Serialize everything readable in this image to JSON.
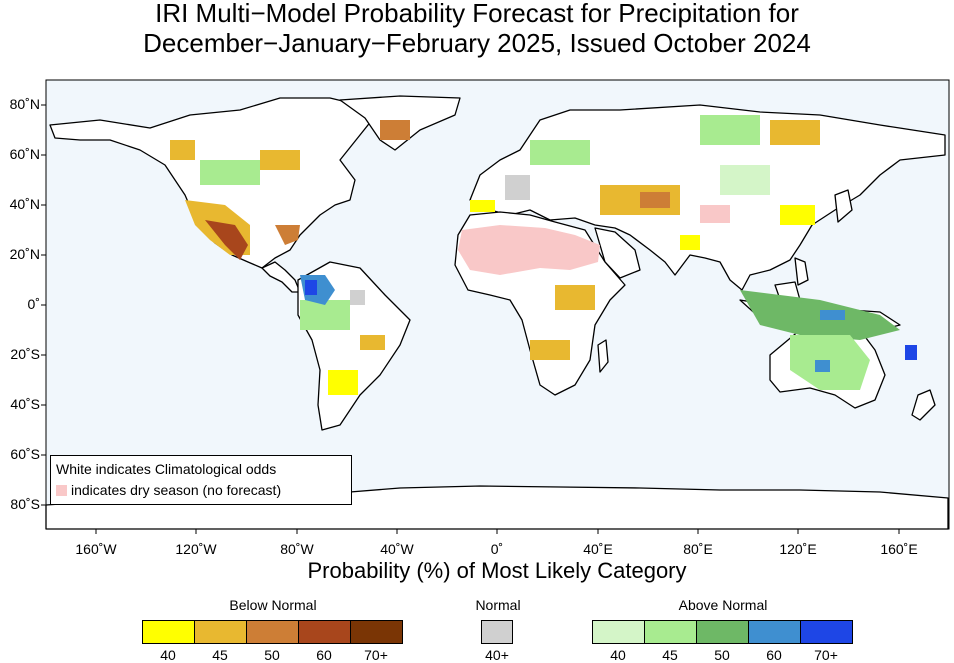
{
  "title": {
    "line1": "IRI Multi−Model Probability Forecast for Precipitation for",
    "line2": "December−January−February 2025, Issued October 2024"
  },
  "axes": {
    "lat_labels": [
      "80˚N",
      "60˚N",
      "40˚N",
      "20˚N",
      "0˚",
      "20˚S",
      "40˚S",
      "60˚S",
      "80˚S"
    ],
    "lon_labels": [
      "160˚W",
      "120˚W",
      "80˚W",
      "40˚W",
      "0˚",
      "40˚E",
      "80˚E",
      "120˚E",
      "160˚E"
    ],
    "xlabel": "Probability (%) of Most Likely Category"
  },
  "legend_box": {
    "line1": "White indicates Climatological odds",
    "line2": "indicates dry season (no forecast)",
    "dry_color": "#f9c8c8"
  },
  "colorbar": {
    "below": {
      "title": "Below Normal",
      "labels": [
        "40",
        "45",
        "50",
        "60",
        "70+"
      ],
      "colors": [
        "#ffff00",
        "#e8b830",
        "#cd7e36",
        "#a8461c",
        "#7a3505"
      ]
    },
    "normal": {
      "title": "Normal",
      "labels": [
        "40+"
      ],
      "colors": [
        "#d0d0d0"
      ]
    },
    "above": {
      "title": "Above Normal",
      "labels": [
        "40",
        "45",
        "50",
        "60",
        "70+"
      ],
      "colors": [
        "#d4f5c8",
        "#a8eb90",
        "#6eb866",
        "#3f8fd0",
        "#1e46e6"
      ]
    }
  },
  "colors": {
    "ocean": "#f1f7fc",
    "land": "#ffffff",
    "frame": "#000000"
  }
}
